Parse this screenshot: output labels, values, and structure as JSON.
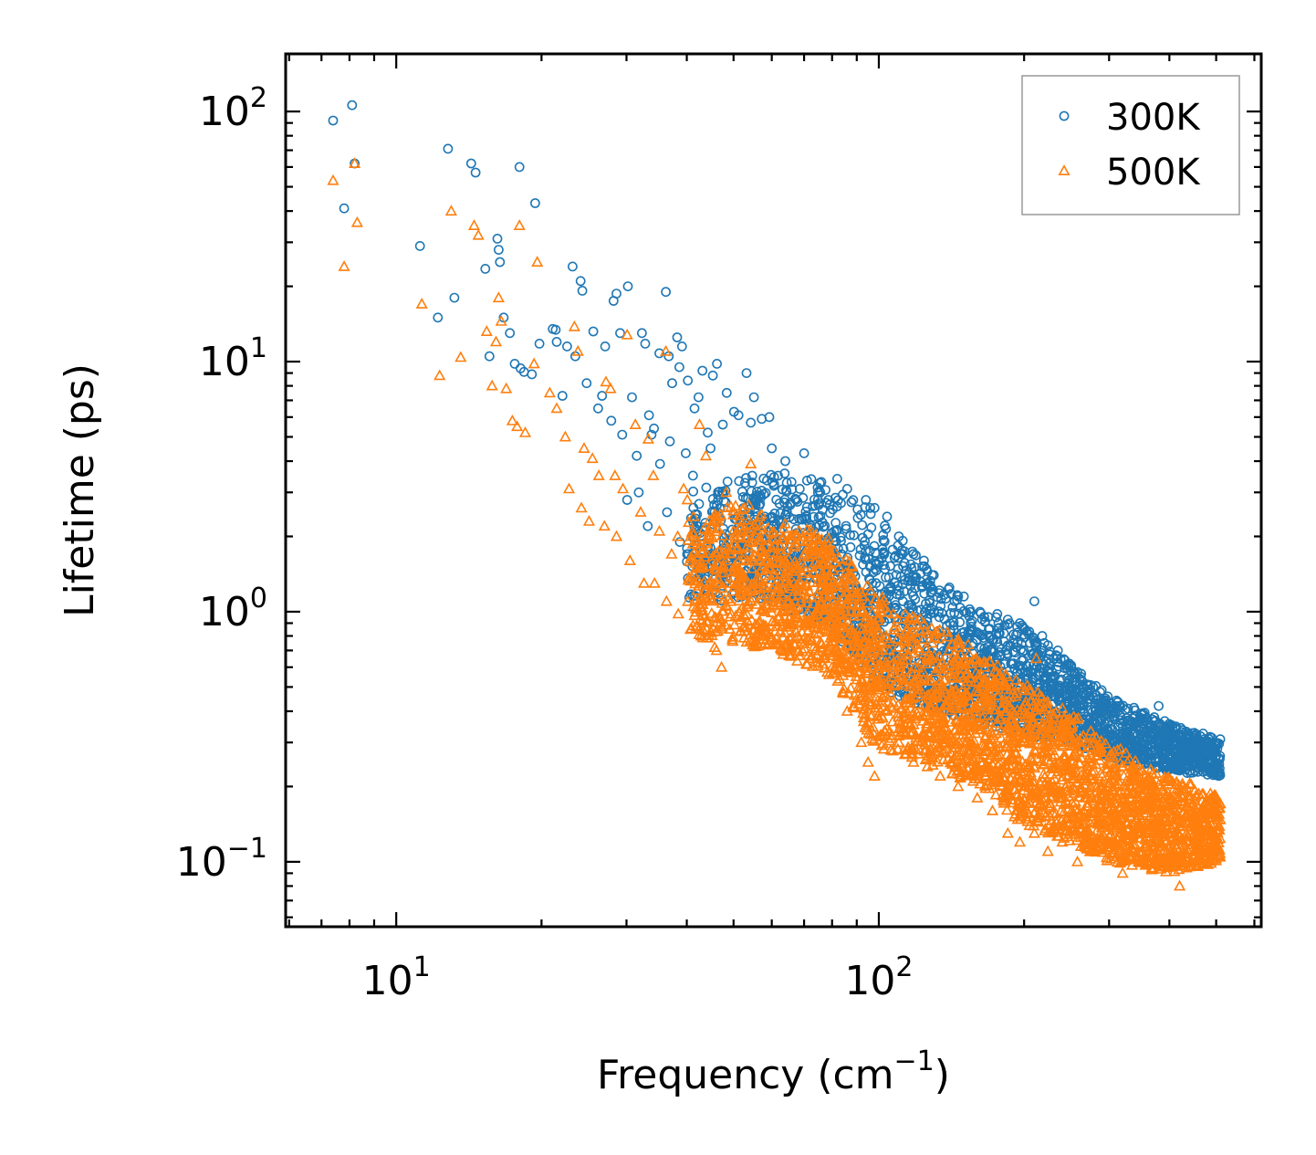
{
  "chart_data": {
    "type": "scatter",
    "title": "",
    "xlabel": "Frequency (cm",
    "xlabel_sup": "−1",
    "xlabel_end": ")",
    "ylabel": "Lifetime (ps)",
    "xscale": "log",
    "yscale": "log",
    "xlim": [
      5.9,
      620
    ],
    "ylim": [
      0.055,
      170
    ],
    "x_ticks": [
      {
        "value": 10,
        "base": "10",
        "exp": "1"
      },
      {
        "value": 100,
        "base": "10",
        "exp": "2"
      }
    ],
    "y_ticks": [
      {
        "value": 0.1,
        "base": "10",
        "exp": "−1"
      },
      {
        "value": 1,
        "base": "10",
        "exp": "0"
      },
      {
        "value": 10,
        "base": "10",
        "exp": "1"
      },
      {
        "value": 100,
        "base": "10",
        "exp": "2"
      }
    ],
    "legend_position": "top-right",
    "series": [
      {
        "name": "300K",
        "marker": "circle",
        "color": "#1f77b4",
        "points": [
          [
            7.4,
            92
          ],
          [
            8.1,
            106
          ],
          [
            8.2,
            62
          ],
          [
            7.8,
            41
          ],
          [
            11.2,
            29
          ],
          [
            12.2,
            15
          ],
          [
            12.8,
            71
          ],
          [
            13.2,
            18
          ],
          [
            14.3,
            62
          ],
          [
            14.6,
            57
          ],
          [
            15.3,
            23.5
          ],
          [
            15.6,
            10.5
          ],
          [
            16.2,
            31
          ],
          [
            16.3,
            28
          ],
          [
            16.4,
            25
          ],
          [
            16.7,
            15
          ],
          [
            17.2,
            13
          ],
          [
            17.6,
            9.8
          ],
          [
            18.0,
            60
          ],
          [
            18.1,
            9.4
          ],
          [
            18.4,
            9.1
          ],
          [
            19.1,
            8.9
          ],
          [
            19.4,
            43
          ],
          [
            19.8,
            11.8
          ],
          [
            21.1,
            13.5
          ],
          [
            21.5,
            12
          ],
          [
            22.1,
            7.3
          ],
          [
            22.6,
            11.5
          ],
          [
            23.2,
            24
          ],
          [
            23.5,
            10.5
          ],
          [
            24.1,
            21
          ],
          [
            24.3,
            19.2
          ],
          [
            25.6,
            13.2
          ],
          [
            26.2,
            6.5
          ],
          [
            27.1,
            11.5
          ],
          [
            28.2,
            17.5
          ],
          [
            28.6,
            18.7
          ],
          [
            29.1,
            13
          ],
          [
            30.2,
            20
          ],
          [
            30.8,
            7.2
          ],
          [
            31.5,
            4.2
          ],
          [
            32.3,
            13
          ],
          [
            32.8,
            11.8
          ],
          [
            33.4,
            6.1
          ],
          [
            34.2,
            5.4
          ],
          [
            35.1,
            10.8
          ],
          [
            36.2,
            19
          ],
          [
            36.7,
            10.5
          ],
          [
            37.3,
            8.2
          ],
          [
            38.2,
            12.5
          ],
          [
            38.6,
            9.5
          ],
          [
            39.1,
            11.5
          ],
          [
            40.2,
            8.4
          ],
          [
            41.5,
            6.5
          ],
          [
            42.3,
            7.2
          ],
          [
            43.1,
            9.2
          ],
          [
            44.2,
            5.2
          ],
          [
            45.3,
            8.8
          ],
          [
            46.2,
            9.8
          ],
          [
            47.5,
            5.6
          ],
          [
            48.4,
            7.5
          ],
          [
            50.1,
            6.3
          ],
          [
            51.2,
            6.1
          ],
          [
            53.2,
            9
          ],
          [
            54.3,
            5.7
          ],
          [
            55.1,
            7.2
          ],
          [
            57.2,
            5.9
          ],
          [
            59.3,
            6.0
          ],
          [
            21.4,
            13.4
          ],
          [
            24.8,
            8.2
          ],
          [
            26.7,
            7.3
          ],
          [
            27.9,
            5.8
          ],
          [
            29.4,
            5.1
          ],
          [
            33.8,
            5.1
          ],
          [
            36.9,
            4.8
          ],
          [
            39.8,
            4.3
          ],
          [
            44.8,
            4.5
          ],
          [
            41.2,
            3.5
          ],
          [
            35.2,
            3.9
          ],
          [
            31.8,
            3.0
          ],
          [
            30.1,
            2.8
          ],
          [
            33.2,
            2.2
          ],
          [
            36.4,
            2.5
          ],
          [
            38.7,
            1.9
          ],
          [
            40.3,
            1.7
          ],
          [
            60,
            4.5
          ],
          [
            64,
            4.0
          ],
          [
            70,
            4.3
          ],
          [
            76,
            3.3
          ],
          [
            82,
            3.4
          ],
          [
            86,
            3.1
          ],
          [
            94,
            2.8
          ],
          [
            98,
            2.6
          ],
          [
            104,
            2.4
          ],
          [
            110,
            2.0
          ],
          [
            118,
            1.7
          ],
          [
            124,
            1.6
          ],
          [
            130,
            1.4
          ],
          [
            140,
            1.25
          ],
          [
            150,
            1.15
          ],
          [
            162,
            1.0
          ],
          [
            175,
            0.95
          ],
          [
            185,
            0.93
          ],
          [
            196,
            0.9
          ],
          [
            210,
            1.1
          ],
          [
            218,
            0.8
          ],
          [
            235,
            0.7
          ],
          [
            248,
            0.62
          ],
          [
            262,
            0.55
          ],
          [
            278,
            0.5
          ],
          [
            295,
            0.45
          ],
          [
            315,
            0.42
          ],
          [
            340,
            0.38
          ],
          [
            360,
            0.36
          ],
          [
            380,
            0.42
          ],
          [
            400,
            0.35
          ],
          [
            425,
            0.33
          ],
          [
            450,
            0.32
          ],
          [
            480,
            0.3
          ],
          [
            500,
            0.29
          ],
          [
            96,
            2.6
          ],
          [
            112,
            1.7
          ],
          [
            126,
            1.45
          ],
          [
            146,
            1.15
          ],
          [
            176,
            0.98
          ]
        ]
      },
      {
        "name": "500K",
        "marker": "triangle",
        "color": "#ff7f0e",
        "points": [
          [
            7.4,
            53
          ],
          [
            7.8,
            24
          ],
          [
            8.2,
            62
          ],
          [
            8.3,
            36
          ],
          [
            11.3,
            17
          ],
          [
            12.3,
            8.8
          ],
          [
            13.0,
            40
          ],
          [
            13.6,
            10.4
          ],
          [
            14.5,
            35
          ],
          [
            14.8,
            32
          ],
          [
            15.4,
            13.2
          ],
          [
            15.8,
            8
          ],
          [
            16.1,
            12
          ],
          [
            16.3,
            18
          ],
          [
            16.5,
            14.5
          ],
          [
            16.9,
            7.8
          ],
          [
            17.4,
            5.8
          ],
          [
            17.8,
            5.5
          ],
          [
            18.0,
            35
          ],
          [
            18.5,
            5.2
          ],
          [
            19.3,
            9.8
          ],
          [
            19.6,
            25
          ],
          [
            20.8,
            7.5
          ],
          [
            21.5,
            6.5
          ],
          [
            22.4,
            5
          ],
          [
            23.4,
            13.8
          ],
          [
            23.8,
            11
          ],
          [
            24.5,
            4.5
          ],
          [
            25.5,
            4.1
          ],
          [
            26.3,
            3.5
          ],
          [
            27.2,
            8.3
          ],
          [
            27.8,
            7.8
          ],
          [
            28.4,
            3.5
          ],
          [
            29.5,
            3.1
          ],
          [
            30.1,
            12.8
          ],
          [
            31.3,
            5.6
          ],
          [
            32.1,
            2.5
          ],
          [
            33.3,
            4.9
          ],
          [
            34.1,
            3.5
          ],
          [
            35.1,
            2.1
          ],
          [
            36.2,
            11
          ],
          [
            37.2,
            1.7
          ],
          [
            38.3,
            2.0
          ],
          [
            39.4,
            3.1
          ],
          [
            40.1,
            2.8
          ],
          [
            41.3,
            2.4
          ],
          [
            42.5,
            5.6
          ],
          [
            43.8,
            4.2
          ],
          [
            44.5,
            1.3
          ],
          [
            45.7,
            0.72
          ],
          [
            47.2,
            0.6
          ],
          [
            48.3,
            3.0
          ],
          [
            50.1,
            1.5
          ],
          [
            52.2,
            1.2
          ],
          [
            54.3,
            3.9
          ],
          [
            56.5,
            0.9
          ],
          [
            58.1,
            1.0
          ],
          [
            22.8,
            3.1
          ],
          [
            24.2,
            2.6
          ],
          [
            25.1,
            2.3
          ],
          [
            27.0,
            2.2
          ],
          [
            28.6,
            2.0
          ],
          [
            30.5,
            1.6
          ],
          [
            32.6,
            1.3
          ],
          [
            34.3,
            1.3
          ],
          [
            36.3,
            1.1
          ],
          [
            38.4,
            0.98
          ],
          [
            40.7,
            0.85
          ],
          [
            42.8,
            0.8
          ],
          [
            46.1,
            0.7
          ],
          [
            60,
            1.8
          ],
          [
            64,
            1.6
          ],
          [
            70,
            1.5
          ],
          [
            76,
            1.1
          ],
          [
            80,
            0.6
          ],
          [
            86,
            0.4
          ],
          [
            92,
            0.3
          ],
          [
            95,
            0.25
          ],
          [
            98,
            0.22
          ],
          [
            104,
            0.4
          ],
          [
            110,
            0.3
          ],
          [
            118,
            0.25
          ],
          [
            126,
            0.24
          ],
          [
            134,
            0.22
          ],
          [
            146,
            0.2
          ],
          [
            160,
            0.18
          ],
          [
            172,
            0.16
          ],
          [
            185,
            0.13
          ],
          [
            196,
            0.12
          ],
          [
            210,
            0.13
          ],
          [
            224,
            0.11
          ],
          [
            240,
            0.12
          ],
          [
            258,
            0.1
          ],
          [
            276,
            0.11
          ],
          [
            300,
            0.12
          ],
          [
            320,
            0.09
          ],
          [
            345,
            0.1
          ],
          [
            370,
            0.12
          ],
          [
            395,
            0.11
          ],
          [
            420,
            0.08
          ],
          [
            450,
            0.11
          ],
          [
            480,
            0.14
          ],
          [
            500,
            0.16
          ],
          [
            66,
            1.0
          ],
          [
            72,
            0.9
          ],
          [
            80,
            0.8
          ],
          [
            88,
            0.85
          ],
          [
            96,
            0.7
          ],
          [
            104,
            0.6
          ],
          [
            112,
            0.55
          ],
          [
            120,
            0.5
          ],
          [
            128,
            0.45
          ],
          [
            138,
            0.42
          ],
          [
            150,
            0.38
          ],
          [
            160,
            0.36
          ],
          [
            172,
            0.32
          ],
          [
            186,
            0.35
          ],
          [
            200,
            0.3
          ],
          [
            212,
            0.65
          ],
          [
            226,
            0.28
          ],
          [
            240,
            0.3
          ],
          [
            255,
            0.27
          ],
          [
            270,
            0.24
          ],
          [
            290,
            0.22
          ],
          [
            310,
            0.2
          ],
          [
            335,
            0.19
          ],
          [
            360,
            0.18
          ],
          [
            385,
            0.16
          ],
          [
            410,
            0.17
          ],
          [
            440,
            0.15
          ],
          [
            470,
            0.16
          ],
          [
            500,
            0.18
          ]
        ]
      }
    ],
    "dense_bands": [
      {
        "series": 0,
        "count": 2600,
        "xrange": [
          40,
          510
        ],
        "upper": [
          [
            40,
            3.1
          ],
          [
            60,
            3.9
          ],
          [
            80,
            3.3
          ],
          [
            100,
            2.4
          ],
          [
            130,
            1.45
          ],
          [
            160,
            1.0
          ],
          [
            200,
            0.88
          ],
          [
            250,
            0.62
          ],
          [
            300,
            0.46
          ],
          [
            400,
            0.36
          ],
          [
            510,
            0.31
          ]
        ],
        "lower": [
          [
            40,
            1.1
          ],
          [
            60,
            1.1
          ],
          [
            80,
            0.85
          ],
          [
            100,
            0.5
          ],
          [
            130,
            0.4
          ],
          [
            160,
            0.36
          ],
          [
            200,
            0.32
          ],
          [
            250,
            0.3
          ],
          [
            300,
            0.26
          ],
          [
            400,
            0.23
          ],
          [
            510,
            0.22
          ]
        ]
      },
      {
        "series": 1,
        "count": 3200,
        "xrange": [
          40,
          510
        ],
        "upper": [
          [
            40,
            2.3
          ],
          [
            50,
            2.8
          ],
          [
            60,
            2.5
          ],
          [
            80,
            2.0
          ],
          [
            100,
            1.2
          ],
          [
            130,
            0.9
          ],
          [
            160,
            0.7
          ],
          [
            200,
            0.52
          ],
          [
            250,
            0.4
          ],
          [
            300,
            0.3
          ],
          [
            400,
            0.22
          ],
          [
            510,
            0.19
          ]
        ],
        "lower": [
          [
            40,
            0.8
          ],
          [
            50,
            0.75
          ],
          [
            60,
            0.7
          ],
          [
            80,
            0.55
          ],
          [
            100,
            0.28
          ],
          [
            130,
            0.24
          ],
          [
            160,
            0.2
          ],
          [
            200,
            0.14
          ],
          [
            250,
            0.12
          ],
          [
            300,
            0.1
          ],
          [
            400,
            0.09
          ],
          [
            510,
            0.1
          ]
        ]
      }
    ]
  }
}
